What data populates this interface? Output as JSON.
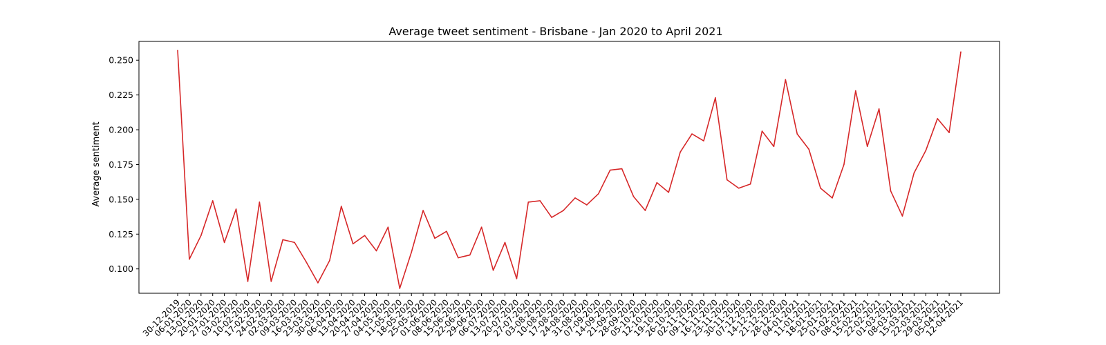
{
  "chart_data": {
    "type": "line",
    "title": "Average tweet sentiment - Brisbane - Jan 2020 to April 2021",
    "xlabel": "",
    "ylabel": "Average sentiment",
    "ylim": [
      0.0825,
      0.2635
    ],
    "yticks": [
      "0.100",
      "0.125",
      "0.150",
      "0.175",
      "0.200",
      "0.225",
      "0.250"
    ],
    "grid": false,
    "line_color": "#d62728",
    "x": [
      "30-12-2019",
      "06-01-2020",
      "13-01-2020",
      "20-01-2020",
      "27-01-2020",
      "03-02-2020",
      "10-02-2020",
      "17-02-2020",
      "24-02-2020",
      "02-03-2020",
      "09-03-2020",
      "16-03-2020",
      "23-03-2020",
      "30-03-2020",
      "06-04-2020",
      "13-04-2020",
      "20-04-2020",
      "27-04-2020",
      "04-05-2020",
      "11-05-2020",
      "18-05-2020",
      "25-05-2020",
      "01-06-2020",
      "08-06-2020",
      "15-06-2020",
      "22-06-2020",
      "29-06-2020",
      "06-07-2020",
      "13-07-2020",
      "20-07-2020",
      "27-07-2020",
      "03-08-2020",
      "10-08-2020",
      "17-08-2020",
      "24-08-2020",
      "31-08-2020",
      "07-09-2020",
      "14-09-2020",
      "21-09-2020",
      "28-09-2020",
      "05-10-2020",
      "12-10-2020",
      "19-10-2020",
      "26-10-2020",
      "02-11-2020",
      "09-11-2020",
      "16-11-2020",
      "23-11-2020",
      "30-11-2020",
      "07-12-2020",
      "14-12-2020",
      "21-12-2020",
      "28-12-2020",
      "04-01-2021",
      "11-01-2021",
      "18-01-2021",
      "25-01-2021",
      "01-02-2021",
      "08-02-2021",
      "15-02-2021",
      "22-02-2021",
      "01-03-2021",
      "08-03-2021",
      "15-03-2021",
      "22-03-2021",
      "29-03-2021",
      "05-04-2021",
      "12-04-2021"
    ],
    "values": [
      0.257,
      0.107,
      0.124,
      0.149,
      0.119,
      0.143,
      0.091,
      0.148,
      0.091,
      0.121,
      0.119,
      0.105,
      0.09,
      0.106,
      0.145,
      0.118,
      0.124,
      0.113,
      0.13,
      0.086,
      0.112,
      0.142,
      0.122,
      0.127,
      0.108,
      0.11,
      0.13,
      0.099,
      0.119,
      0.093,
      0.148,
      0.149,
      0.137,
      0.142,
      0.151,
      0.146,
      0.154,
      0.171,
      0.172,
      0.152,
      0.142,
      0.162,
      0.155,
      0.184,
      0.197,
      0.192,
      0.223,
      0.164,
      0.158,
      0.161,
      0.199,
      0.188,
      0.236,
      0.197,
      0.186,
      0.158,
      0.151,
      0.175,
      0.228,
      0.188,
      0.215,
      0.156,
      0.138,
      0.169,
      0.185,
      0.208,
      0.198,
      0.256
    ]
  }
}
